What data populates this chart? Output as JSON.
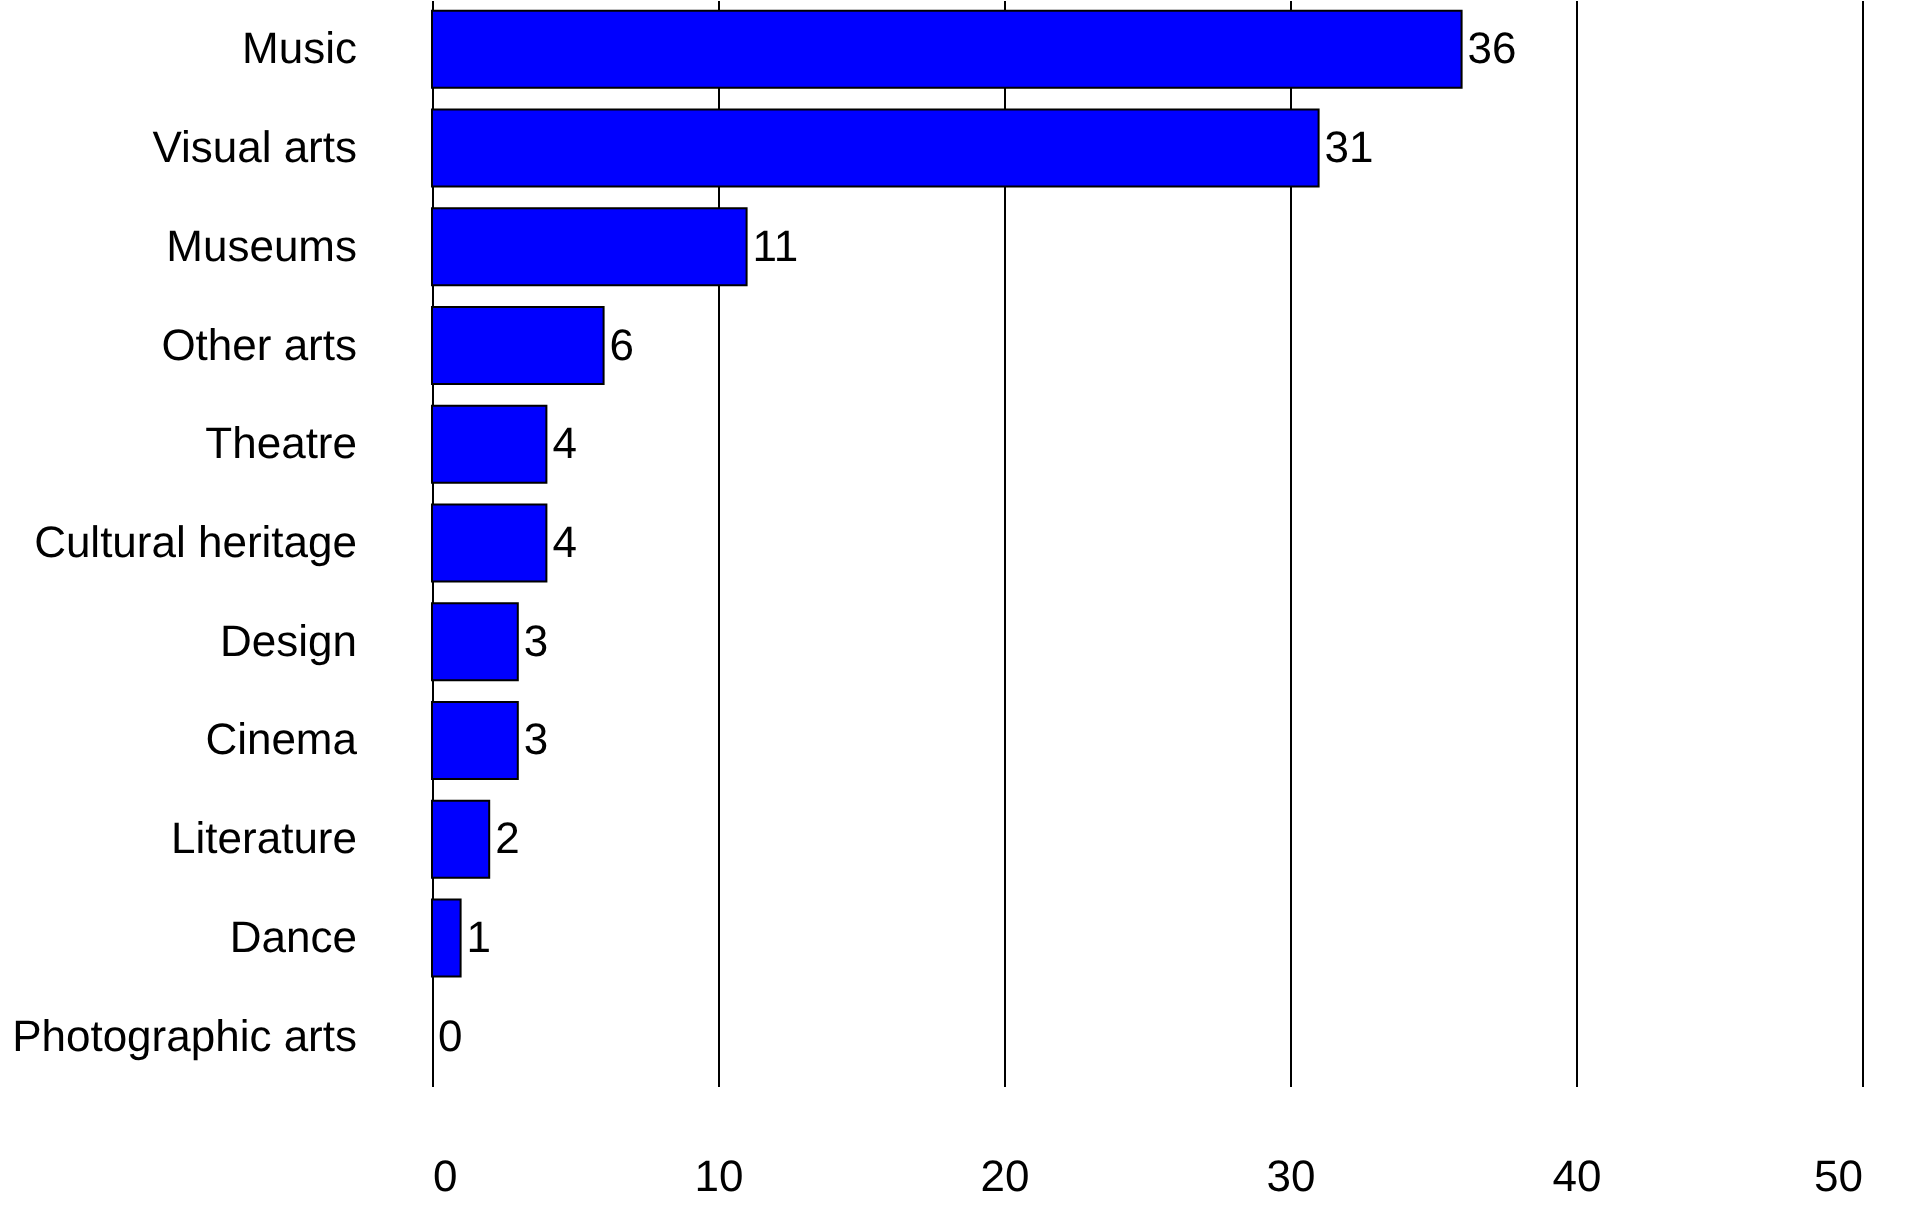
{
  "chart_data": {
    "type": "bar",
    "orientation": "horizontal",
    "categories": [
      "Music",
      "Visual arts",
      "Museums",
      "Other arts",
      "Theatre",
      "Cultural heritage",
      "Design",
      "Cinema",
      "Literature",
      "Dance",
      "Photographic arts"
    ],
    "values": [
      36,
      31,
      11,
      6,
      4,
      4,
      3,
      3,
      2,
      1,
      0
    ],
    "color": "#0000ff",
    "xlim": [
      0,
      50
    ],
    "xticks": [
      0,
      10,
      20,
      30,
      40,
      50
    ],
    "grid": "x",
    "data_labels": true
  }
}
